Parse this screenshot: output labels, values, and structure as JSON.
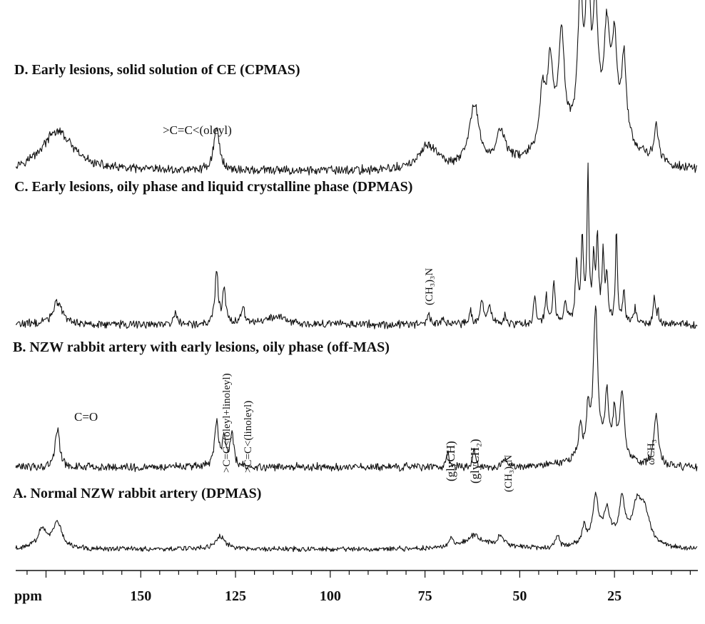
{
  "chart_data": {
    "type": "line",
    "x_unit_label": "ppm",
    "xlim": [
      183,
      3
    ],
    "x_reversed": true,
    "x_ticks": [
      150,
      125,
      100,
      75,
      50,
      25
    ],
    "spectra": [
      {
        "id": "D",
        "title": "D. Early lesions, solid solution of CE (CPMAS)",
        "peaks": [
          {
            "x": 172,
            "h": 0.24,
            "w": 5.0
          },
          {
            "x": 130,
            "h": 0.26,
            "w": 0.9
          },
          {
            "x": 74,
            "h": 0.15,
            "w": 3.0
          },
          {
            "x": 62,
            "h": 0.38,
            "w": 1.6
          },
          {
            "x": 55,
            "h": 0.2,
            "w": 1.5
          },
          {
            "x": 44,
            "h": 0.33,
            "w": 0.8
          },
          {
            "x": 42,
            "h": 0.48,
            "w": 0.9
          },
          {
            "x": 39,
            "h": 0.63,
            "w": 0.9
          },
          {
            "x": 34,
            "h": 0.8,
            "w": 0.8
          },
          {
            "x": 32,
            "h": 1.0,
            "w": 0.6
          },
          {
            "x": 30,
            "h": 0.72,
            "w": 0.8
          },
          {
            "x": 27,
            "h": 0.62,
            "w": 0.9
          },
          {
            "x": 25,
            "h": 0.55,
            "w": 0.8
          },
          {
            "x": 22.5,
            "h": 0.5,
            "w": 0.8
          },
          {
            "x": 14,
            "h": 0.2,
            "w": 0.7
          }
        ],
        "broad": [
          {
            "x": 32,
            "h": 0.2,
            "w": 16
          }
        ],
        "annotations": [
          ">C=C<(oleyl)"
        ]
      },
      {
        "id": "C",
        "title": "C. Early lesions, oily phase and liquid crystalline phase (DPMAS)",
        "peaks": [
          {
            "x": 172,
            "h": 0.15,
            "w": 1.5
          },
          {
            "x": 141,
            "h": 0.07,
            "w": 0.5
          },
          {
            "x": 130,
            "h": 0.36,
            "w": 0.5
          },
          {
            "x": 128,
            "h": 0.21,
            "w": 0.5
          },
          {
            "x": 123,
            "h": 0.12,
            "w": 0.5
          },
          {
            "x": 114,
            "h": 0.05,
            "w": 3.0
          },
          {
            "x": 74,
            "h": 0.06,
            "w": 0.6
          },
          {
            "x": 70,
            "h": 0.04,
            "w": 0.5
          },
          {
            "x": 63,
            "h": 0.08,
            "w": 0.5
          },
          {
            "x": 60,
            "h": 0.15,
            "w": 0.5
          },
          {
            "x": 58,
            "h": 0.13,
            "w": 0.5
          },
          {
            "x": 54,
            "h": 0.05,
            "w": 0.5
          },
          {
            "x": 46,
            "h": 0.18,
            "w": 0.4
          },
          {
            "x": 43,
            "h": 0.18,
            "w": 0.4
          },
          {
            "x": 41,
            "h": 0.26,
            "w": 0.4
          },
          {
            "x": 38,
            "h": 0.15,
            "w": 0.4
          },
          {
            "x": 35,
            "h": 0.4,
            "w": 0.4
          },
          {
            "x": 33.5,
            "h": 0.56,
            "w": 0.35
          },
          {
            "x": 32,
            "h": 1.0,
            "w": 0.3
          },
          {
            "x": 30.5,
            "h": 0.4,
            "w": 0.35
          },
          {
            "x": 29.5,
            "h": 0.55,
            "w": 0.35
          },
          {
            "x": 28,
            "h": 0.45,
            "w": 0.35
          },
          {
            "x": 27,
            "h": 0.3,
            "w": 0.35
          },
          {
            "x": 24.5,
            "h": 0.62,
            "w": 0.3
          },
          {
            "x": 22.5,
            "h": 0.22,
            "w": 0.35
          },
          {
            "x": 19.5,
            "h": 0.1,
            "w": 0.4
          },
          {
            "x": 14.5,
            "h": 0.18,
            "w": 0.35
          },
          {
            "x": 13.5,
            "h": 0.07,
            "w": 0.35
          }
        ],
        "broad": [],
        "annotations": [
          "(CH₃)₃N"
        ]
      },
      {
        "id": "B",
        "title": "B. NZW rabbit artery with early lesions, oily phase (off-MAS)",
        "peaks": [
          {
            "x": 172,
            "h": 0.26,
            "w": 0.7
          },
          {
            "x": 130,
            "h": 0.3,
            "w": 0.6
          },
          {
            "x": 128,
            "h": 0.18,
            "w": 0.6
          },
          {
            "x": 126,
            "h": 0.22,
            "w": 0.6
          },
          {
            "x": 69,
            "h": 0.1,
            "w": 0.5
          },
          {
            "x": 62,
            "h": 0.11,
            "w": 0.5
          },
          {
            "x": 54,
            "h": 0.07,
            "w": 0.5
          },
          {
            "x": 34,
            "h": 0.22,
            "w": 0.5
          },
          {
            "x": 32,
            "h": 0.3,
            "w": 0.5
          },
          {
            "x": 30,
            "h": 1.0,
            "w": 0.7
          },
          {
            "x": 27,
            "h": 0.4,
            "w": 0.6
          },
          {
            "x": 25,
            "h": 0.3,
            "w": 0.5
          },
          {
            "x": 23,
            "h": 0.45,
            "w": 0.7
          },
          {
            "x": 14,
            "h": 0.35,
            "w": 0.7
          }
        ],
        "broad": [
          {
            "x": 30,
            "h": 0.06,
            "w": 10
          }
        ],
        "annotations": [
          "C=O",
          ">C=C<(oleyl+linoleyl)",
          ">C=C<(linoleyl)",
          "(glyCH)",
          "(glyCH₂)",
          "(CH₃)₃N",
          "ωCH₃"
        ]
      },
      {
        "id": "A",
        "title": "A. Normal NZW rabbit artery (DPMAS)",
        "peaks": [
          {
            "x": 176,
            "h": 0.2,
            "w": 1.5
          },
          {
            "x": 172,
            "h": 0.28,
            "w": 1.5
          },
          {
            "x": 129,
            "h": 0.14,
            "w": 1.5
          },
          {
            "x": 68,
            "h": 0.08,
            "w": 0.6
          },
          {
            "x": 62,
            "h": 0.1,
            "w": 2.0
          },
          {
            "x": 55,
            "h": 0.1,
            "w": 1.0
          },
          {
            "x": 40,
            "h": 0.12,
            "w": 0.6
          },
          {
            "x": 33,
            "h": 0.18,
            "w": 0.6
          },
          {
            "x": 30,
            "h": 0.46,
            "w": 0.9
          },
          {
            "x": 27,
            "h": 0.3,
            "w": 1.0
          },
          {
            "x": 23,
            "h": 0.42,
            "w": 0.8
          },
          {
            "x": 19,
            "h": 0.38,
            "w": 1.5
          },
          {
            "x": 17,
            "h": 0.3,
            "w": 1.5
          }
        ],
        "broad": [
          {
            "x": 60,
            "h": 0.05,
            "w": 10
          },
          {
            "x": 25,
            "h": 0.1,
            "w": 10
          }
        ],
        "annotations": []
      }
    ]
  }
}
